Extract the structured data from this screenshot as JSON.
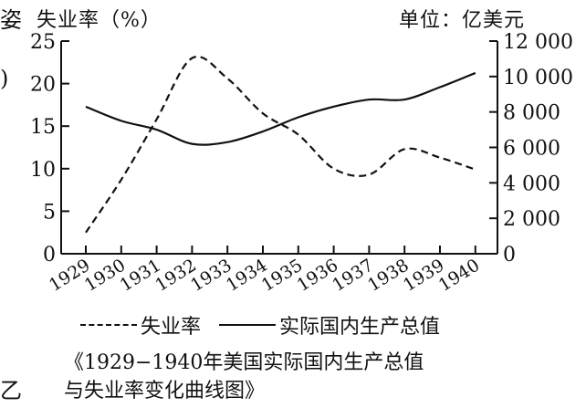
{
  "fragments": {
    "top": "姿",
    "mid": ")",
    "bottom": "乙"
  },
  "legend": {
    "unemployment": "失业率",
    "gdp": "实际国内生产总值"
  },
  "caption": {
    "line1": "《1929−1940年美国实际国内生产总值",
    "line2": "与失业率变化曲线图》"
  },
  "chart_data": {
    "type": "line",
    "x": [
      "1929",
      "1930",
      "1931",
      "1932",
      "1933",
      "1934",
      "1935",
      "1936",
      "1937",
      "1938",
      "1939",
      "1940"
    ],
    "left_axis": {
      "label": "失业率（%）",
      "min": 0,
      "max": 25,
      "ticks": [
        0,
        5,
        10,
        15,
        20,
        25
      ],
      "tick_labels": [
        "0",
        "5",
        "10",
        "15",
        "20",
        "25"
      ]
    },
    "right_axis": {
      "label": "单位：亿美元",
      "min": 0,
      "max": 12000,
      "ticks": [
        0,
        2000,
        4000,
        6000,
        8000,
        10000,
        12000
      ],
      "tick_labels": [
        "0",
        "2 000",
        "4 000",
        "6 000",
        "8 000",
        "10 000",
        "12 000"
      ]
    },
    "series": [
      {
        "name": "失业率",
        "axis": "left",
        "style": "dashed",
        "values": [
          2.5,
          8.7,
          15.8,
          23.0,
          20.6,
          16.5,
          14.0,
          10.0,
          9.3,
          12.3,
          11.3,
          9.9
        ]
      },
      {
        "name": "实际国内生产总值",
        "axis": "right",
        "style": "solid",
        "values": [
          8300,
          7500,
          7000,
          6200,
          6300,
          6900,
          7700,
          8300,
          8700,
          8700,
          9400,
          10200
        ]
      }
    ],
    "grid": false
  }
}
